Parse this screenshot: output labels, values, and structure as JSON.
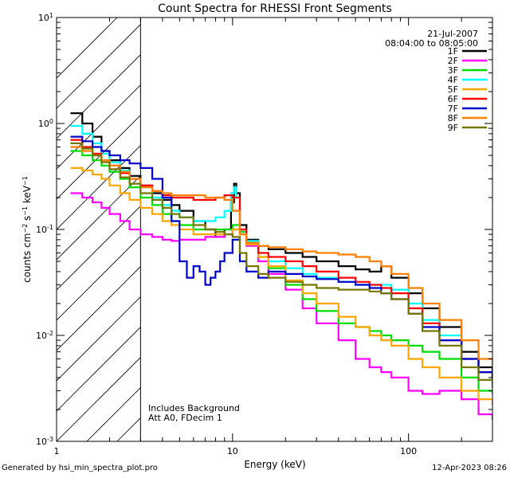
{
  "chart_data": {
    "type": "line",
    "title": "Count Spectra for RHESSI Front Segments",
    "xlabel": "Energy (keV)",
    "ylabel": "counts cm-2 s-1 keV-1",
    "xscale": "log",
    "yscale": "log",
    "xlim": [
      1,
      300
    ],
    "ylim": [
      0.001,
      10
    ],
    "x_tick_labels": [
      "1",
      "10",
      "100"
    ],
    "y_tick_labels": [
      {
        "base": "10",
        "exp": "-3"
      },
      {
        "base": "10",
        "exp": "-2"
      },
      {
        "base": "10",
        "exp": "-1"
      },
      {
        "base": "10",
        "exp": "0"
      },
      {
        "base": "10",
        "exp": "1"
      }
    ],
    "shaded_region_max_keV": 3,
    "date": "21-Jul-2007",
    "time_range": "08:04:00 to 08:05:00",
    "annotations": [
      "Includes Background",
      "Att A0, FDecim 1"
    ],
    "series": [
      {
        "name": "1F",
        "color": "#000000",
        "x": [
          1.2,
          1.4,
          1.6,
          1.8,
          2.0,
          2.3,
          2.6,
          3.0,
          3.5,
          4.0,
          4.5,
          5.0,
          6.0,
          7.0,
          8.0,
          9.0,
          9.8,
          10.2,
          10.5,
          11.0,
          12.0,
          14.0,
          16.0,
          20.0,
          25.0,
          30.0,
          40.0,
          50.0,
          60.0,
          70.0,
          80.0,
          100.0,
          120.0,
          150.0,
          200.0,
          250.0,
          300.0
        ],
        "values": [
          1.25,
          1.0,
          0.75,
          0.55,
          0.45,
          0.38,
          0.32,
          0.26,
          0.22,
          0.19,
          0.17,
          0.15,
          0.12,
          0.1,
          0.085,
          0.1,
          0.18,
          0.27,
          0.22,
          0.11,
          0.08,
          0.07,
          0.065,
          0.06,
          0.055,
          0.05,
          0.045,
          0.042,
          0.04,
          0.045,
          0.035,
          0.025,
          0.018,
          0.012,
          0.007,
          0.005,
          0.004
        ]
      },
      {
        "name": "2F",
        "color": "#ff00ff",
        "x": [
          1.2,
          1.4,
          1.6,
          1.8,
          2.0,
          2.3,
          2.6,
          3.0,
          3.5,
          4.0,
          4.5,
          5.0,
          6.0,
          7.0,
          8.0,
          9.0,
          10.0,
          11.0,
          12.0,
          14.0,
          16.0,
          20.0,
          25.0,
          30.0,
          40.0,
          50.0,
          60.0,
          70.0,
          80.0,
          100.0,
          120.0,
          150.0,
          200.0,
          250.0,
          300.0
        ],
        "values": [
          0.22,
          0.2,
          0.18,
          0.16,
          0.14,
          0.12,
          0.1,
          0.09,
          0.085,
          0.08,
          0.078,
          0.08,
          0.08,
          0.085,
          0.085,
          0.09,
          0.1,
          0.095,
          0.07,
          0.05,
          0.038,
          0.027,
          0.018,
          0.013,
          0.009,
          0.006,
          0.005,
          0.0045,
          0.004,
          0.003,
          0.0028,
          0.003,
          0.0025,
          0.0018,
          0.0016
        ]
      },
      {
        "name": "3F",
        "color": "#00dd00",
        "x": [
          1.2,
          1.4,
          1.6,
          1.8,
          2.0,
          2.3,
          2.6,
          3.0,
          3.5,
          4.0,
          4.5,
          5.0,
          6.0,
          7.0,
          8.0,
          9.0,
          10.0,
          11.0,
          12.0,
          14.0,
          16.0,
          20.0,
          25.0,
          30.0,
          40.0,
          50.0,
          60.0,
          70.0,
          80.0,
          100.0,
          120.0,
          150.0,
          200.0,
          250.0,
          300.0
        ],
        "values": [
          0.55,
          0.5,
          0.45,
          0.4,
          0.35,
          0.3,
          0.25,
          0.2,
          0.17,
          0.14,
          0.12,
          0.11,
          0.1,
          0.1,
          0.1,
          0.1,
          0.11,
          0.095,
          0.075,
          0.055,
          0.043,
          0.03,
          0.022,
          0.017,
          0.013,
          0.012,
          0.011,
          0.01,
          0.009,
          0.008,
          0.007,
          0.006,
          0.004,
          0.003,
          0.0028
        ]
      },
      {
        "name": "4F",
        "color": "#00ffff",
        "x": [
          1.2,
          1.4,
          1.6,
          1.8,
          2.0,
          2.3,
          2.6,
          3.0,
          3.5,
          4.0,
          4.5,
          5.0,
          6.0,
          7.0,
          8.0,
          9.0,
          9.8,
          10.2,
          10.5,
          11.0,
          12.0,
          14.0,
          16.0,
          20.0,
          25.0,
          30.0,
          40.0,
          50.0,
          60.0,
          70.0,
          80.0,
          100.0,
          120.0,
          150.0,
          200.0,
          250.0,
          300.0
        ],
        "values": [
          0.95,
          0.8,
          0.65,
          0.52,
          0.43,
          0.36,
          0.3,
          0.25,
          0.2,
          0.17,
          0.15,
          0.13,
          0.12,
          0.12,
          0.13,
          0.15,
          0.22,
          0.25,
          0.2,
          0.1,
          0.078,
          0.06,
          0.05,
          0.043,
          0.038,
          0.035,
          0.032,
          0.03,
          0.03,
          0.03,
          0.027,
          0.02,
          0.014,
          0.01,
          0.006,
          0.0045,
          0.0035
        ]
      },
      {
        "name": "5F",
        "color": "#ffa500",
        "x": [
          1.2,
          1.4,
          1.6,
          1.8,
          2.0,
          2.3,
          2.6,
          3.0,
          3.5,
          4.0,
          4.5,
          5.0,
          6.0,
          7.0,
          8.0,
          9.0,
          10.0,
          11.0,
          12.0,
          14.0,
          16.0,
          20.0,
          25.0,
          30.0,
          40.0,
          50.0,
          60.0,
          70.0,
          80.0,
          100.0,
          120.0,
          150.0,
          200.0,
          250.0,
          300.0
        ],
        "values": [
          0.38,
          0.36,
          0.33,
          0.3,
          0.26,
          0.22,
          0.19,
          0.16,
          0.14,
          0.12,
          0.11,
          0.1,
          0.09,
          0.09,
          0.09,
          0.09,
          0.1,
          0.09,
          0.072,
          0.055,
          0.045,
          0.033,
          0.025,
          0.02,
          0.015,
          0.012,
          0.01,
          0.009,
          0.008,
          0.006,
          0.005,
          0.004,
          0.003,
          0.0025,
          0.0022
        ]
      },
      {
        "name": "6F",
        "color": "#ff0000",
        "x": [
          1.2,
          1.4,
          1.6,
          1.8,
          2.0,
          2.3,
          2.6,
          3.0,
          3.5,
          4.0,
          4.5,
          5.0,
          6.0,
          7.0,
          8.0,
          9.0,
          10.0,
          11.0,
          12.0,
          14.0,
          16.0,
          20.0,
          25.0,
          30.0,
          40.0,
          50.0,
          60.0,
          70.0,
          80.0,
          100.0,
          120.0,
          150.0,
          200.0,
          250.0,
          300.0
        ],
        "values": [
          0.7,
          0.6,
          0.52,
          0.45,
          0.4,
          0.34,
          0.3,
          0.26,
          0.23,
          0.21,
          0.2,
          0.2,
          0.19,
          0.19,
          0.2,
          0.21,
          0.2,
          0.1,
          0.075,
          0.06,
          0.055,
          0.05,
          0.045,
          0.04,
          0.035,
          0.032,
          0.03,
          0.028,
          0.025,
          0.018,
          0.013,
          0.009,
          0.006,
          0.0045,
          0.0038
        ]
      },
      {
        "name": "7F",
        "color": "#0000cc",
        "x": [
          1.2,
          1.4,
          1.6,
          1.8,
          2.0,
          2.3,
          2.6,
          3.0,
          3.5,
          4.0,
          4.5,
          5.0,
          5.5,
          6.0,
          6.5,
          7.0,
          7.5,
          8.0,
          8.5,
          9.0,
          10.0,
          11.0,
          12.0,
          14.0,
          16.0,
          20.0,
          25.0,
          30.0,
          40.0,
          50.0,
          60.0,
          70.0,
          80.0,
          100.0,
          120.0,
          150.0,
          200.0,
          250.0,
          300.0
        ],
        "values": [
          0.75,
          0.68,
          0.6,
          0.55,
          0.5,
          0.45,
          0.42,
          0.38,
          0.3,
          0.2,
          0.12,
          0.05,
          0.035,
          0.045,
          0.04,
          0.03,
          0.035,
          0.04,
          0.05,
          0.06,
          0.08,
          0.05,
          0.04,
          0.035,
          0.04,
          0.038,
          0.036,
          0.034,
          0.032,
          0.03,
          0.028,
          0.025,
          0.022,
          0.016,
          0.012,
          0.009,
          0.006,
          0.0045,
          0.004
        ]
      },
      {
        "name": "8F",
        "color": "#ff7f00",
        "x": [
          1.2,
          1.4,
          1.6,
          1.8,
          2.0,
          2.3,
          2.6,
          3.0,
          3.5,
          4.0,
          4.5,
          5.0,
          6.0,
          7.0,
          8.0,
          9.0,
          10.0,
          11.0,
          12.0,
          14.0,
          16.0,
          20.0,
          25.0,
          30.0,
          40.0,
          50.0,
          60.0,
          70.0,
          80.0,
          100.0,
          120.0,
          150.0,
          200.0,
          250.0,
          300.0
        ],
        "values": [
          0.6,
          0.55,
          0.5,
          0.45,
          0.4,
          0.35,
          0.3,
          0.25,
          0.23,
          0.22,
          0.21,
          0.21,
          0.21,
          0.2,
          0.2,
          0.19,
          0.15,
          0.09,
          0.075,
          0.07,
          0.068,
          0.065,
          0.062,
          0.06,
          0.058,
          0.055,
          0.05,
          0.045,
          0.038,
          0.028,
          0.02,
          0.014,
          0.009,
          0.006,
          0.005
        ]
      },
      {
        "name": "9F",
        "color": "#777700",
        "x": [
          1.2,
          1.4,
          1.6,
          1.8,
          2.0,
          2.3,
          2.6,
          3.0,
          3.5,
          4.0,
          4.5,
          5.0,
          6.0,
          7.0,
          8.0,
          9.0,
          10.0,
          11.0,
          12.0,
          14.0,
          16.0,
          20.0,
          25.0,
          30.0,
          40.0,
          50.0,
          60.0,
          70.0,
          80.0,
          100.0,
          120.0,
          150.0,
          200.0,
          250.0,
          300.0
        ],
        "values": [
          0.65,
          0.58,
          0.5,
          0.43,
          0.37,
          0.31,
          0.27,
          0.22,
          0.19,
          0.16,
          0.14,
          0.13,
          0.11,
          0.1,
          0.095,
          0.09,
          0.085,
          0.06,
          0.045,
          0.038,
          0.035,
          0.032,
          0.03,
          0.028,
          0.027,
          0.027,
          0.026,
          0.025,
          0.022,
          0.016,
          0.011,
          0.008,
          0.005,
          0.0038,
          0.0032
        ]
      }
    ]
  },
  "footer": {
    "left": "Generated by hsi_min_spectra_plot.pro",
    "right": "12-Apr-2023 08:26"
  }
}
